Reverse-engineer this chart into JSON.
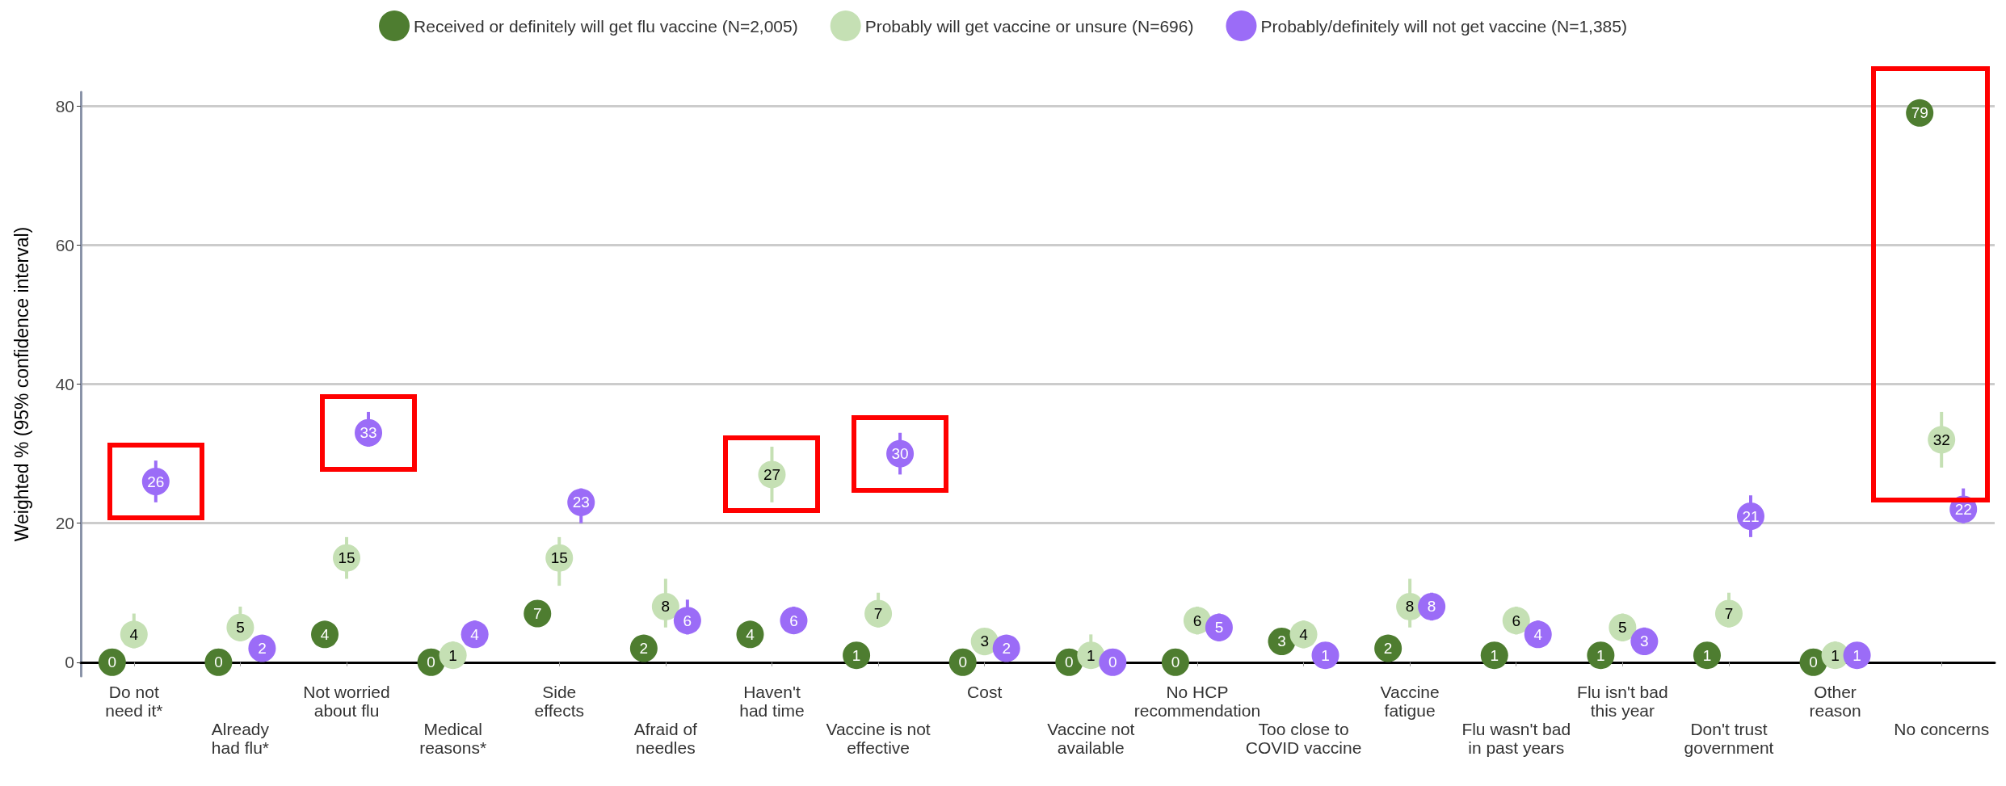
{
  "chart_data": {
    "type": "scatter",
    "ylabel": "Weighted % (95% confidence interval)",
    "categories": [
      "Do not\nneed it*",
      "Already\nhad flu*",
      "Not worried\nabout flu",
      "Medical\nreasons*",
      "Side\neffects",
      "Afraid of\nneedles",
      "Haven't\nhad time",
      "Vaccine is not\neffective",
      "Cost",
      "Vaccine not\navailable",
      "No HCP\nrecommendation",
      "Too close to\nCOVID vaccine",
      "Vaccine\nfatigue",
      "Flu wasn't bad\nin past years",
      "Flu isn't bad\nthis year",
      "Don't trust\ngovernment",
      "Other\nreason",
      "No concerns"
    ],
    "series": [
      {
        "name": "Received or definitely will get flu vaccine (N=2,005)",
        "color": "#4e7d30",
        "values": [
          0,
          0,
          4,
          0,
          7,
          2,
          4,
          1,
          0,
          0,
          0,
          3,
          2,
          1,
          1,
          1,
          0,
          79
        ]
      },
      {
        "name": "Probably will get vaccine or unsure (N=696)",
        "color": "#c5e0b4",
        "values": [
          4,
          5,
          15,
          1,
          15,
          8,
          27,
          7,
          3,
          1,
          6,
          4,
          8,
          6,
          5,
          7,
          1,
          32
        ],
        "errors": [
          [
            2,
            7
          ],
          [
            3,
            8
          ],
          [
            12,
            18
          ],
          [
            1,
            3
          ],
          [
            11,
            18
          ],
          [
            5,
            12
          ],
          [
            23,
            31
          ],
          [
            5,
            10
          ],
          [
            1,
            4
          ],
          [
            1,
            4
          ],
          [
            4,
            8
          ],
          [
            2,
            6
          ],
          [
            5,
            12
          ],
          [
            4,
            8
          ],
          [
            3,
            7
          ],
          [
            5,
            10
          ],
          [
            1,
            3
          ],
          [
            28,
            36
          ]
        ]
      },
      {
        "name": "Probably/definitely will not get vaccine (N=1,385)",
        "color": "#9b6cf7",
        "values": [
          26,
          2,
          33,
          4,
          23,
          6,
          6,
          30,
          2,
          0,
          5,
          1,
          8,
          4,
          3,
          21,
          1,
          22
        ],
        "errors": [
          [
            23,
            29
          ],
          null,
          [
            31,
            36
          ],
          [
            4,
            6
          ],
          [
            20,
            25
          ],
          [
            4,
            9
          ],
          [
            6,
            8
          ],
          [
            27,
            33
          ],
          null,
          null,
          [
            3,
            7
          ],
          null,
          [
            6,
            10
          ],
          [
            4,
            6
          ],
          [
            3,
            5
          ],
          [
            18,
            24
          ],
          null,
          [
            20,
            25
          ]
        ]
      }
    ],
    "ylim": [
      -2,
      82
    ],
    "yticks": [
      0,
      20,
      40,
      60,
      80
    ],
    "grid": "y",
    "legend": "top",
    "marker": "circle",
    "data_labels": true
  }
}
